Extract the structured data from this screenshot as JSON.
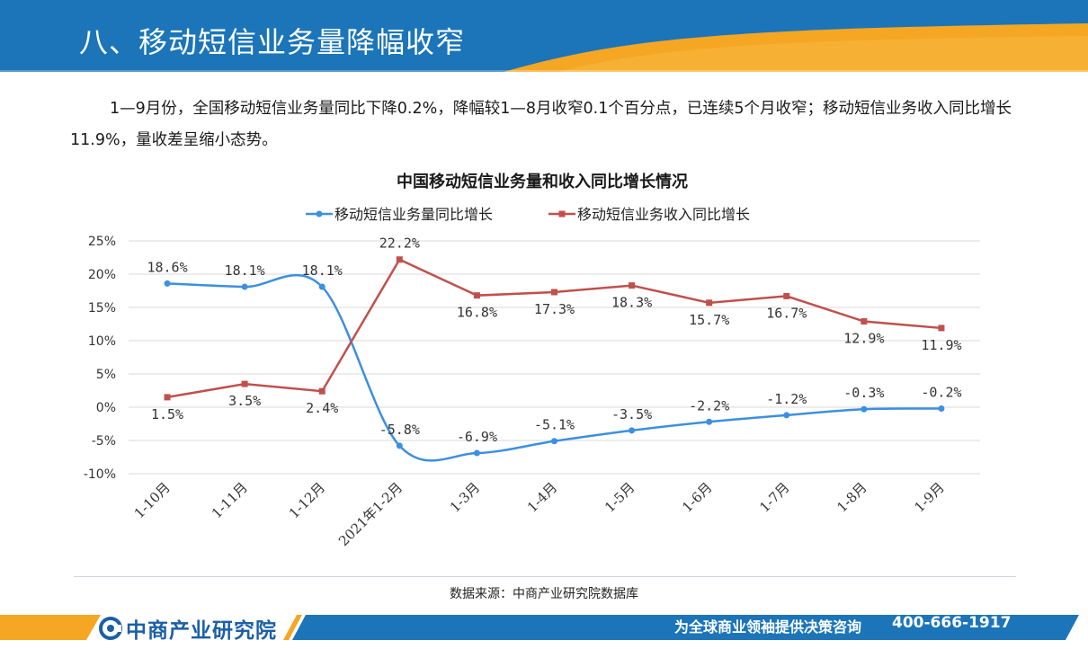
{
  "header": {
    "title": "八、移动短信业务量降幅收窄"
  },
  "intro": {
    "text": "1—9月份，全国移动短信业务量同比下降0.2%，降幅较1—8月收窄0.1个百分点，已连续5个月收窄；移动短信业务收入同比增长11.9%，量收差呈缩小态势。"
  },
  "colors": {
    "header_blue": "#1b75b8",
    "accent_orange": "#f5a623",
    "series1": "#3d8fe0",
    "series2": "#c0504d"
  },
  "chart_data": {
    "type": "line",
    "title": "中国移动短信业务量和收入同比增长情况",
    "categories": [
      "1-10月",
      "1-11月",
      "1-12月",
      "2021年1-2月",
      "1-3月",
      "1-4月",
      "1-5月",
      "1-6月",
      "1-7月",
      "1-8月",
      "1-9月"
    ],
    "series": [
      {
        "name": "移动短信业务量同比增长",
        "values": [
          18.6,
          18.1,
          18.1,
          -5.8,
          -6.9,
          -5.1,
          -3.5,
          -2.2,
          -1.2,
          -0.3,
          -0.2
        ],
        "labels": [
          "18.6%",
          "18.1%",
          "18.1%",
          "-5.8%",
          "-6.9%",
          "-5.1%",
          "-3.5%",
          "-2.2%",
          "-1.2%",
          "-0.3%",
          "-0.2%"
        ]
      },
      {
        "name": "移动短信业务收入同比增长",
        "values": [
          1.5,
          3.5,
          2.4,
          22.2,
          16.8,
          17.3,
          18.3,
          15.7,
          16.7,
          12.9,
          11.9
        ],
        "labels": [
          "1.5%",
          "3.5%",
          "2.4%",
          "22.2%",
          "16.8%",
          "17.3%",
          "18.3%",
          "15.7%",
          "16.7%",
          "12.9%",
          "11.9%"
        ]
      }
    ],
    "y_ticks": [
      "25%",
      "20%",
      "15%",
      "10%",
      "5%",
      "0%",
      "-5%",
      "-10%"
    ],
    "ylim": [
      -10,
      25
    ],
    "grid": true,
    "legend": "top"
  },
  "footer": {
    "source": "数据来源：中商产业研究院数据库",
    "logo": "中商产业研究院",
    "slogan": "为全球商业领袖提供决策咨询",
    "phone": "400-666-1917"
  }
}
